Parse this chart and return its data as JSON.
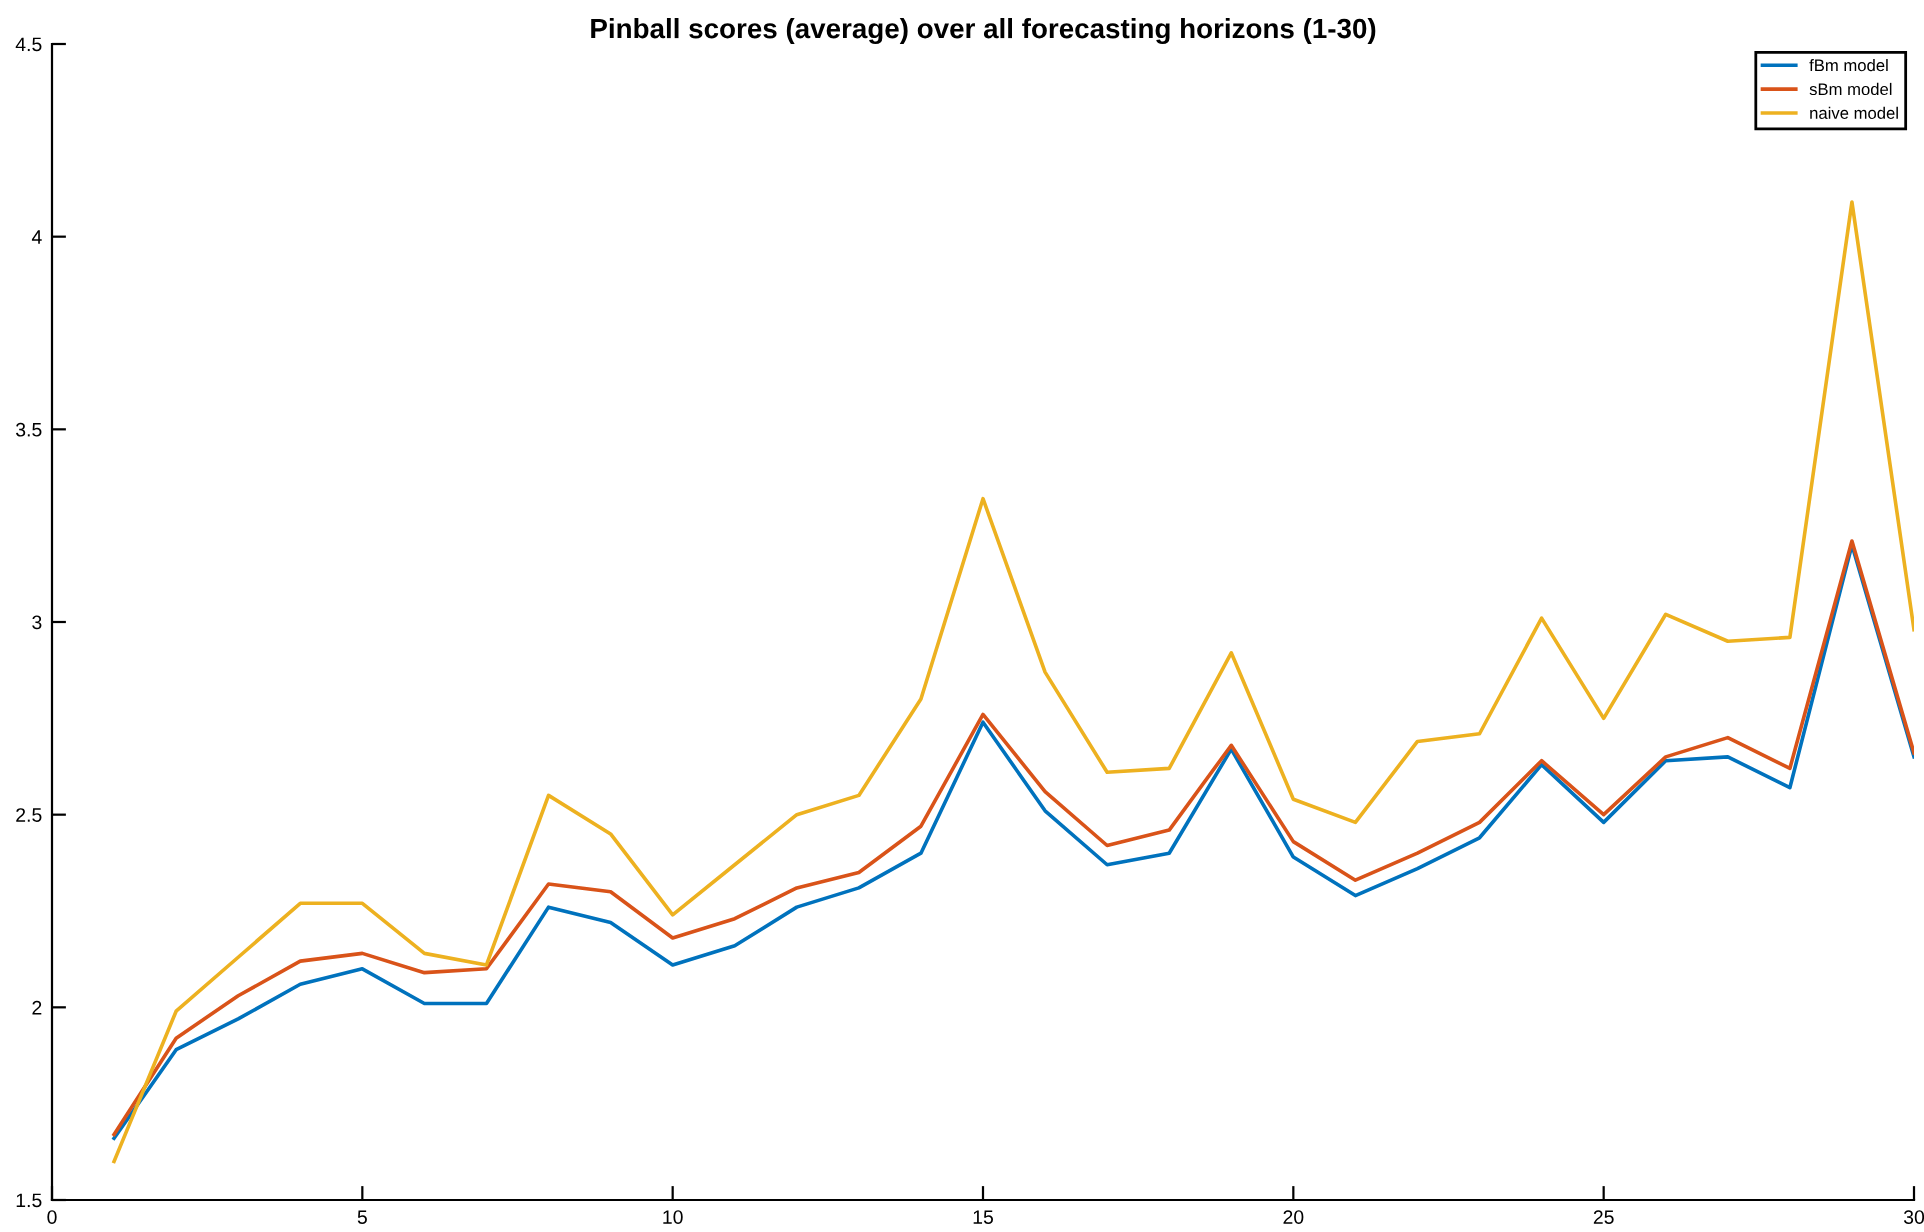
{
  "chart_data": {
    "type": "line",
    "title": "Pinball scores (average) over all forecasting horizons (1-30)",
    "x": [
      1,
      2,
      3,
      4,
      5,
      6,
      7,
      8,
      9,
      10,
      11,
      12,
      13,
      14,
      15,
      16,
      17,
      18,
      19,
      20,
      21,
      22,
      23,
      24,
      25,
      26,
      27,
      28,
      29,
      30
    ],
    "series": [
      {
        "name": "fBm model",
        "color": "#0072bd",
        "values": [
          1.66,
          1.89,
          1.97,
          2.06,
          2.1,
          2.01,
          2.01,
          2.26,
          2.22,
          2.11,
          2.16,
          2.26,
          2.31,
          2.4,
          2.74,
          2.51,
          2.37,
          2.4,
          2.67,
          2.39,
          2.29,
          2.36,
          2.44,
          2.63,
          2.48,
          2.64,
          2.65,
          2.57,
          3.2,
          2.65
        ]
      },
      {
        "name": "sBm model",
        "color": "#d95319",
        "values": [
          1.67,
          1.92,
          2.03,
          2.12,
          2.14,
          2.09,
          2.1,
          2.32,
          2.3,
          2.18,
          2.23,
          2.31,
          2.35,
          2.47,
          2.76,
          2.56,
          2.42,
          2.46,
          2.68,
          2.43,
          2.33,
          2.4,
          2.48,
          2.64,
          2.5,
          2.65,
          2.7,
          2.62,
          3.21,
          2.66
        ]
      },
      {
        "name": "naive model",
        "color": "#edb120",
        "values": [
          1.6,
          1.99,
          2.13,
          2.27,
          2.27,
          2.14,
          2.11,
          2.55,
          2.45,
          2.24,
          2.37,
          2.5,
          2.55,
          2.8,
          3.32,
          2.87,
          2.61,
          2.62,
          2.92,
          2.54,
          2.48,
          2.69,
          2.71,
          3.01,
          2.75,
          3.02,
          2.95,
          2.96,
          4.09,
          2.98
        ]
      }
    ],
    "xlim": [
      0,
      30
    ],
    "xticks": [
      0,
      5,
      10,
      15,
      20,
      25,
      30
    ],
    "ylim": [
      1.5,
      4.5
    ],
    "yticks": [
      1.5,
      2,
      2.5,
      3,
      3.5,
      4,
      4.5
    ],
    "legend": "top right",
    "grid": false,
    "marker": "none",
    "line_style": "solid"
  }
}
